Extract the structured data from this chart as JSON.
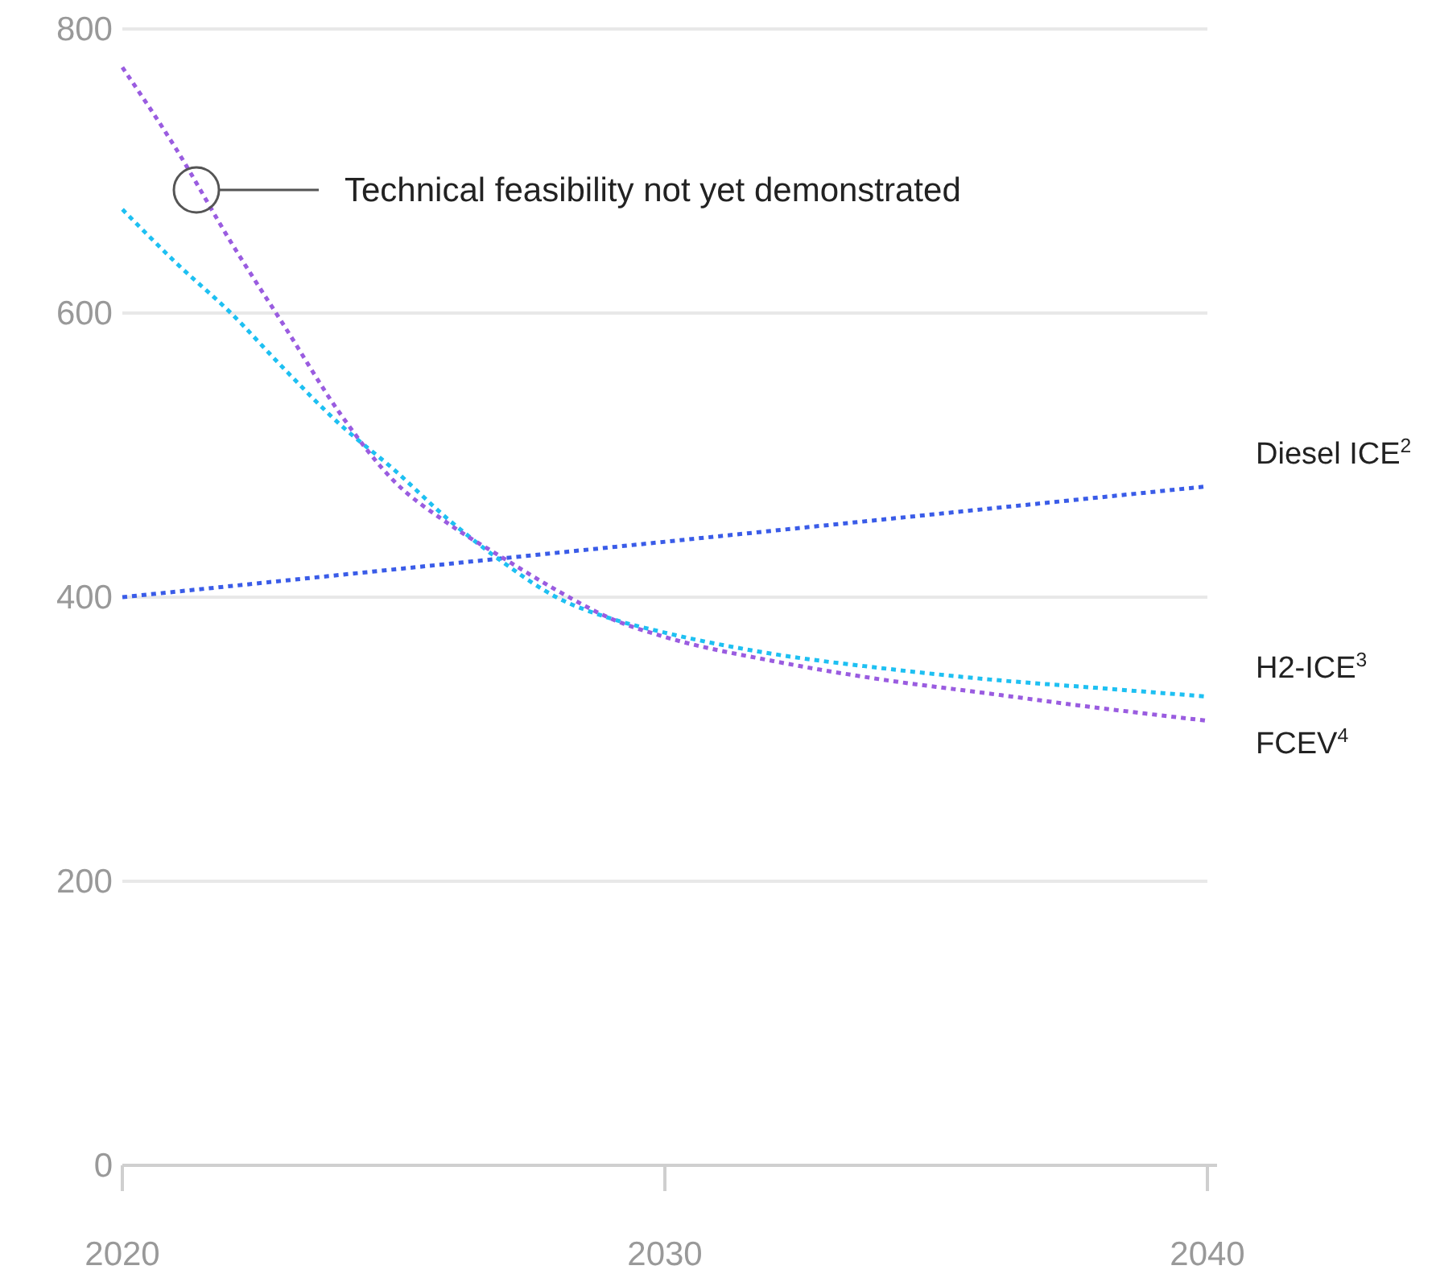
{
  "chart_data": {
    "type": "line",
    "x": [
      2020,
      2021,
      2022,
      2023,
      2024,
      2025,
      2026,
      2027,
      2028,
      2029,
      2030,
      2032,
      2034,
      2036,
      2038,
      2040
    ],
    "series": [
      {
        "name": "Diesel ICE$^{2}$",
        "color": "#3a5ce8",
        "x": [
          2020,
          2040
        ],
        "values": [
          400,
          478
        ]
      },
      {
        "name": "H2-ICE$^{3}$",
        "color": "#1ec0f2",
        "values": [
          673,
          635,
          600,
          560,
          522,
          490,
          455,
          425,
          400,
          385,
          375,
          360,
          350,
          342,
          336,
          330
        ]
      },
      {
        "name": "FCEV$^{4}$",
        "color": "#9a5ce0",
        "values": [
          773,
          715,
          650,
          590,
          530,
          482,
          452,
          428,
          405,
          385,
          372,
          355,
          342,
          332,
          322,
          313
        ]
      }
    ],
    "xlim": [
      2020,
      2040
    ],
    "xticks": [
      2020,
      2030,
      2040
    ],
    "ylim": [
      0,
      800
    ],
    "yticks": [
      0,
      200,
      400,
      600,
      800
    ],
    "grid": "y",
    "line_style": "dotted",
    "marker": "none",
    "annotations": [
      "Technical feasibility not yet demonstrated"
    ]
  }
}
